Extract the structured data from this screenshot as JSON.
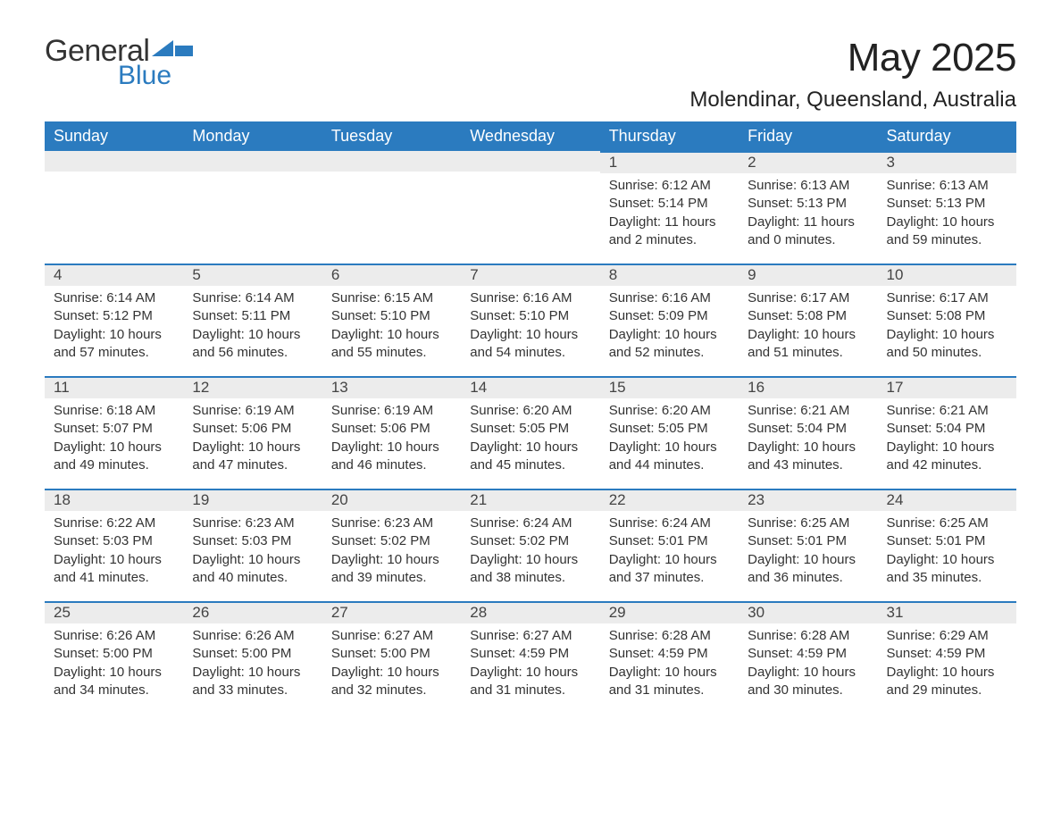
{
  "logo": {
    "text1": "General",
    "text2": "Blue",
    "icon_color": "#2b7bbf"
  },
  "title": "May 2025",
  "location": "Molendinar, Queensland, Australia",
  "colors": {
    "header_bg": "#2b7bbf",
    "header_text": "#ffffff",
    "day_number_bg": "#ececec",
    "day_border_top": "#2b7bbf",
    "body_text": "#333333",
    "page_bg": "#ffffff"
  },
  "day_headers": [
    "Sunday",
    "Monday",
    "Tuesday",
    "Wednesday",
    "Thursday",
    "Friday",
    "Saturday"
  ],
  "weeks": [
    [
      null,
      null,
      null,
      null,
      {
        "n": "1",
        "sunrise": "Sunrise: 6:12 AM",
        "sunset": "Sunset: 5:14 PM",
        "daylight": "Daylight: 11 hours and 2 minutes."
      },
      {
        "n": "2",
        "sunrise": "Sunrise: 6:13 AM",
        "sunset": "Sunset: 5:13 PM",
        "daylight": "Daylight: 11 hours and 0 minutes."
      },
      {
        "n": "3",
        "sunrise": "Sunrise: 6:13 AM",
        "sunset": "Sunset: 5:13 PM",
        "daylight": "Daylight: 10 hours and 59 minutes."
      }
    ],
    [
      {
        "n": "4",
        "sunrise": "Sunrise: 6:14 AM",
        "sunset": "Sunset: 5:12 PM",
        "daylight": "Daylight: 10 hours and 57 minutes."
      },
      {
        "n": "5",
        "sunrise": "Sunrise: 6:14 AM",
        "sunset": "Sunset: 5:11 PM",
        "daylight": "Daylight: 10 hours and 56 minutes."
      },
      {
        "n": "6",
        "sunrise": "Sunrise: 6:15 AM",
        "sunset": "Sunset: 5:10 PM",
        "daylight": "Daylight: 10 hours and 55 minutes."
      },
      {
        "n": "7",
        "sunrise": "Sunrise: 6:16 AM",
        "sunset": "Sunset: 5:10 PM",
        "daylight": "Daylight: 10 hours and 54 minutes."
      },
      {
        "n": "8",
        "sunrise": "Sunrise: 6:16 AM",
        "sunset": "Sunset: 5:09 PM",
        "daylight": "Daylight: 10 hours and 52 minutes."
      },
      {
        "n": "9",
        "sunrise": "Sunrise: 6:17 AM",
        "sunset": "Sunset: 5:08 PM",
        "daylight": "Daylight: 10 hours and 51 minutes."
      },
      {
        "n": "10",
        "sunrise": "Sunrise: 6:17 AM",
        "sunset": "Sunset: 5:08 PM",
        "daylight": "Daylight: 10 hours and 50 minutes."
      }
    ],
    [
      {
        "n": "11",
        "sunrise": "Sunrise: 6:18 AM",
        "sunset": "Sunset: 5:07 PM",
        "daylight": "Daylight: 10 hours and 49 minutes."
      },
      {
        "n": "12",
        "sunrise": "Sunrise: 6:19 AM",
        "sunset": "Sunset: 5:06 PM",
        "daylight": "Daylight: 10 hours and 47 minutes."
      },
      {
        "n": "13",
        "sunrise": "Sunrise: 6:19 AM",
        "sunset": "Sunset: 5:06 PM",
        "daylight": "Daylight: 10 hours and 46 minutes."
      },
      {
        "n": "14",
        "sunrise": "Sunrise: 6:20 AM",
        "sunset": "Sunset: 5:05 PM",
        "daylight": "Daylight: 10 hours and 45 minutes."
      },
      {
        "n": "15",
        "sunrise": "Sunrise: 6:20 AM",
        "sunset": "Sunset: 5:05 PM",
        "daylight": "Daylight: 10 hours and 44 minutes."
      },
      {
        "n": "16",
        "sunrise": "Sunrise: 6:21 AM",
        "sunset": "Sunset: 5:04 PM",
        "daylight": "Daylight: 10 hours and 43 minutes."
      },
      {
        "n": "17",
        "sunrise": "Sunrise: 6:21 AM",
        "sunset": "Sunset: 5:04 PM",
        "daylight": "Daylight: 10 hours and 42 minutes."
      }
    ],
    [
      {
        "n": "18",
        "sunrise": "Sunrise: 6:22 AM",
        "sunset": "Sunset: 5:03 PM",
        "daylight": "Daylight: 10 hours and 41 minutes."
      },
      {
        "n": "19",
        "sunrise": "Sunrise: 6:23 AM",
        "sunset": "Sunset: 5:03 PM",
        "daylight": "Daylight: 10 hours and 40 minutes."
      },
      {
        "n": "20",
        "sunrise": "Sunrise: 6:23 AM",
        "sunset": "Sunset: 5:02 PM",
        "daylight": "Daylight: 10 hours and 39 minutes."
      },
      {
        "n": "21",
        "sunrise": "Sunrise: 6:24 AM",
        "sunset": "Sunset: 5:02 PM",
        "daylight": "Daylight: 10 hours and 38 minutes."
      },
      {
        "n": "22",
        "sunrise": "Sunrise: 6:24 AM",
        "sunset": "Sunset: 5:01 PM",
        "daylight": "Daylight: 10 hours and 37 minutes."
      },
      {
        "n": "23",
        "sunrise": "Sunrise: 6:25 AM",
        "sunset": "Sunset: 5:01 PM",
        "daylight": "Daylight: 10 hours and 36 minutes."
      },
      {
        "n": "24",
        "sunrise": "Sunrise: 6:25 AM",
        "sunset": "Sunset: 5:01 PM",
        "daylight": "Daylight: 10 hours and 35 minutes."
      }
    ],
    [
      {
        "n": "25",
        "sunrise": "Sunrise: 6:26 AM",
        "sunset": "Sunset: 5:00 PM",
        "daylight": "Daylight: 10 hours and 34 minutes."
      },
      {
        "n": "26",
        "sunrise": "Sunrise: 6:26 AM",
        "sunset": "Sunset: 5:00 PM",
        "daylight": "Daylight: 10 hours and 33 minutes."
      },
      {
        "n": "27",
        "sunrise": "Sunrise: 6:27 AM",
        "sunset": "Sunset: 5:00 PM",
        "daylight": "Daylight: 10 hours and 32 minutes."
      },
      {
        "n": "28",
        "sunrise": "Sunrise: 6:27 AM",
        "sunset": "Sunset: 4:59 PM",
        "daylight": "Daylight: 10 hours and 31 minutes."
      },
      {
        "n": "29",
        "sunrise": "Sunrise: 6:28 AM",
        "sunset": "Sunset: 4:59 PM",
        "daylight": "Daylight: 10 hours and 31 minutes."
      },
      {
        "n": "30",
        "sunrise": "Sunrise: 6:28 AM",
        "sunset": "Sunset: 4:59 PM",
        "daylight": "Daylight: 10 hours and 30 minutes."
      },
      {
        "n": "31",
        "sunrise": "Sunrise: 6:29 AM",
        "sunset": "Sunset: 4:59 PM",
        "daylight": "Daylight: 10 hours and 29 minutes."
      }
    ]
  ]
}
